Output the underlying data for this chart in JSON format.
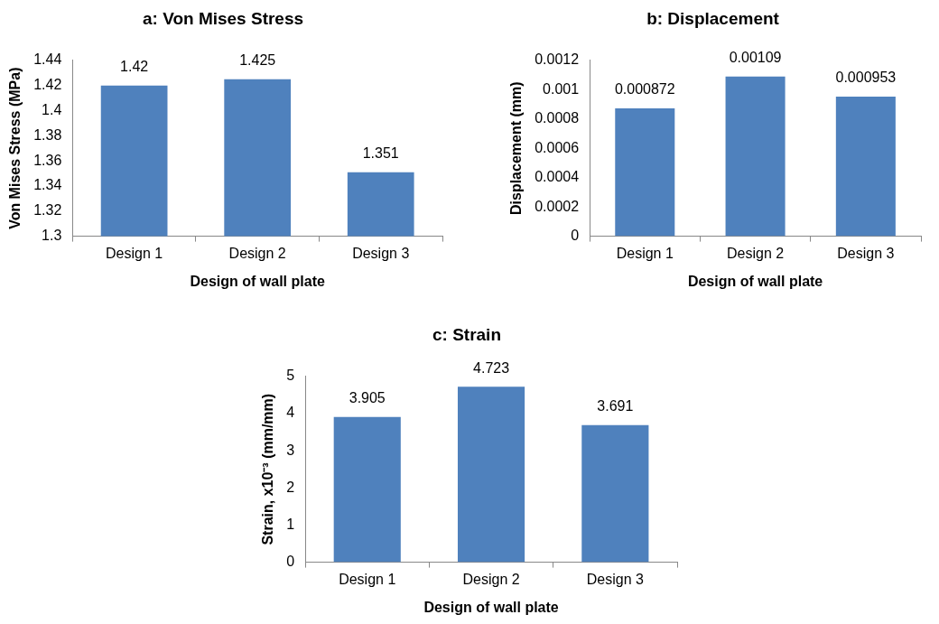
{
  "chart_data": [
    {
      "type": "bar",
      "title": "a: Von Mises Stress",
      "xlabel": "Design of wall plate",
      "ylabel": "Von Mises Stress (MPa)",
      "categories": [
        "Design 1",
        "Design 2",
        "Design 3"
      ],
      "values": [
        1.42,
        1.425,
        1.351
      ],
      "color": "#4f81bd",
      "ylim": [
        1.3,
        1.44
      ],
      "yticks": [
        1.3,
        1.32,
        1.34,
        1.36,
        1.38,
        1.4,
        1.42,
        1.44
      ],
      "grid": false,
      "legend": false,
      "data_labels": true
    },
    {
      "type": "bar",
      "title": "b: Displacement",
      "xlabel": "Design of wall plate",
      "ylabel": "Displacement (mm)",
      "categories": [
        "Design 1",
        "Design 2",
        "Design 3"
      ],
      "values": [
        0.000872,
        0.00109,
        0.000953
      ],
      "color": "#4f81bd",
      "ylim": [
        0,
        0.0012
      ],
      "yticks": [
        0,
        0.0002,
        0.0004,
        0.0006,
        0.0008,
        0.001,
        0.0012
      ],
      "grid": false,
      "legend": false,
      "data_labels": true
    },
    {
      "type": "bar",
      "title": "c: Strain",
      "xlabel": "Design of wall plate",
      "ylabel": "Strain, x10⁻³ (mm/mm)",
      "categories": [
        "Design 1",
        "Design 2",
        "Design 3"
      ],
      "values": [
        3.905,
        4.723,
        3.691
      ],
      "color": "#4f81bd",
      "ylim": [
        0,
        5
      ],
      "yticks": [
        0,
        1,
        2,
        3,
        4,
        5
      ],
      "grid": false,
      "legend": false,
      "data_labels": true
    }
  ]
}
